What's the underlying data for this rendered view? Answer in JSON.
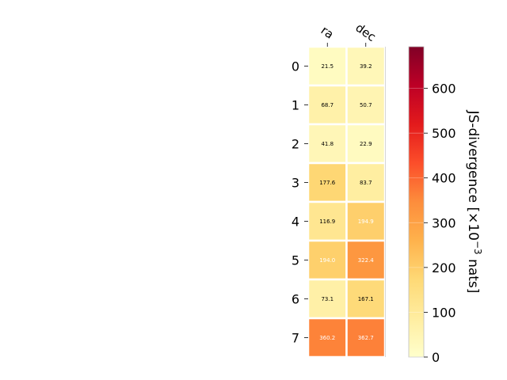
{
  "chart_data": {
    "type": "heatmap",
    "title": "",
    "x_categories": [
      "ra",
      "dec"
    ],
    "y_categories": [
      "0",
      "1",
      "2",
      "3",
      "4",
      "5",
      "6",
      "7"
    ],
    "values": [
      [
        21.5,
        39.2
      ],
      [
        68.7,
        50.7
      ],
      [
        41.8,
        22.9
      ],
      [
        177.6,
        83.7
      ],
      [
        116.9,
        194.9
      ],
      [
        194.0,
        322.4
      ],
      [
        73.1,
        167.1
      ],
      [
        360.2,
        362.7
      ]
    ],
    "value_labels": [
      [
        "21.5",
        "39.2"
      ],
      [
        "68.7",
        "50.7"
      ],
      [
        "41.8",
        "22.9"
      ],
      [
        "177.6",
        "83.7"
      ],
      [
        "116.9",
        "194.9"
      ],
      [
        "194.0",
        "322.4"
      ],
      [
        "73.1",
        "167.1"
      ],
      [
        "360.2",
        "362.7"
      ]
    ],
    "colorbar": {
      "label_main": "JS-divergence [×10",
      "label_exp": "−3",
      "label_tail": " nats]",
      "range": [
        0,
        693
      ],
      "ticks": [
        0,
        100,
        200,
        300,
        400,
        500,
        600
      ],
      "tick_labels": [
        "0",
        "100",
        "200",
        "300",
        "400",
        "500",
        "600"
      ],
      "colormap": "YlOrRd",
      "label_color_threshold": 190
    },
    "grid": false,
    "colors": {
      "cell_border": "#ffffff",
      "dark_text": "#000000",
      "light_text": "#ffffff"
    }
  }
}
